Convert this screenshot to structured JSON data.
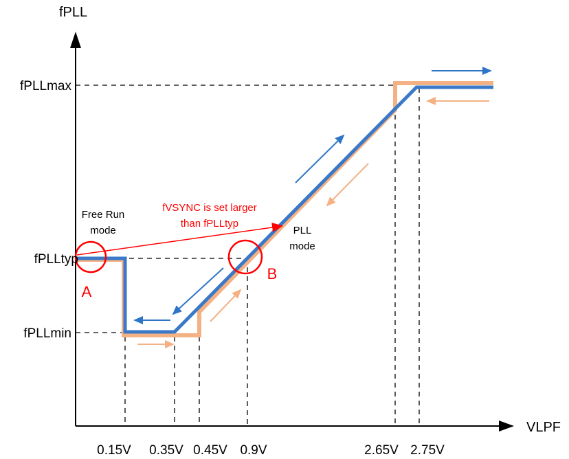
{
  "axes": {
    "y_title": "fPLL",
    "x_title": "VLPF"
  },
  "y_ticks": {
    "max": "fPLLmax",
    "typ": "fPLLtyp",
    "min": "fPLLmin"
  },
  "x_ticks": [
    "0.15V",
    "0.35V",
    "0.45V",
    "0.9V",
    "2.65V",
    "2.75V"
  ],
  "annotations": {
    "free_run_line1": "Free Run",
    "free_run_line2": "mode",
    "fvsync_line1": "fVSYNC is set larger",
    "fvsync_line2": "than fPLLtyp",
    "pll_line1": "PLL",
    "pll_line2": "mode",
    "point_a": "A",
    "point_b": "B"
  },
  "colors": {
    "blue": "#3a78c8",
    "orange": "#f4b183",
    "red": "#ff0000",
    "axis": "#000000"
  }
}
